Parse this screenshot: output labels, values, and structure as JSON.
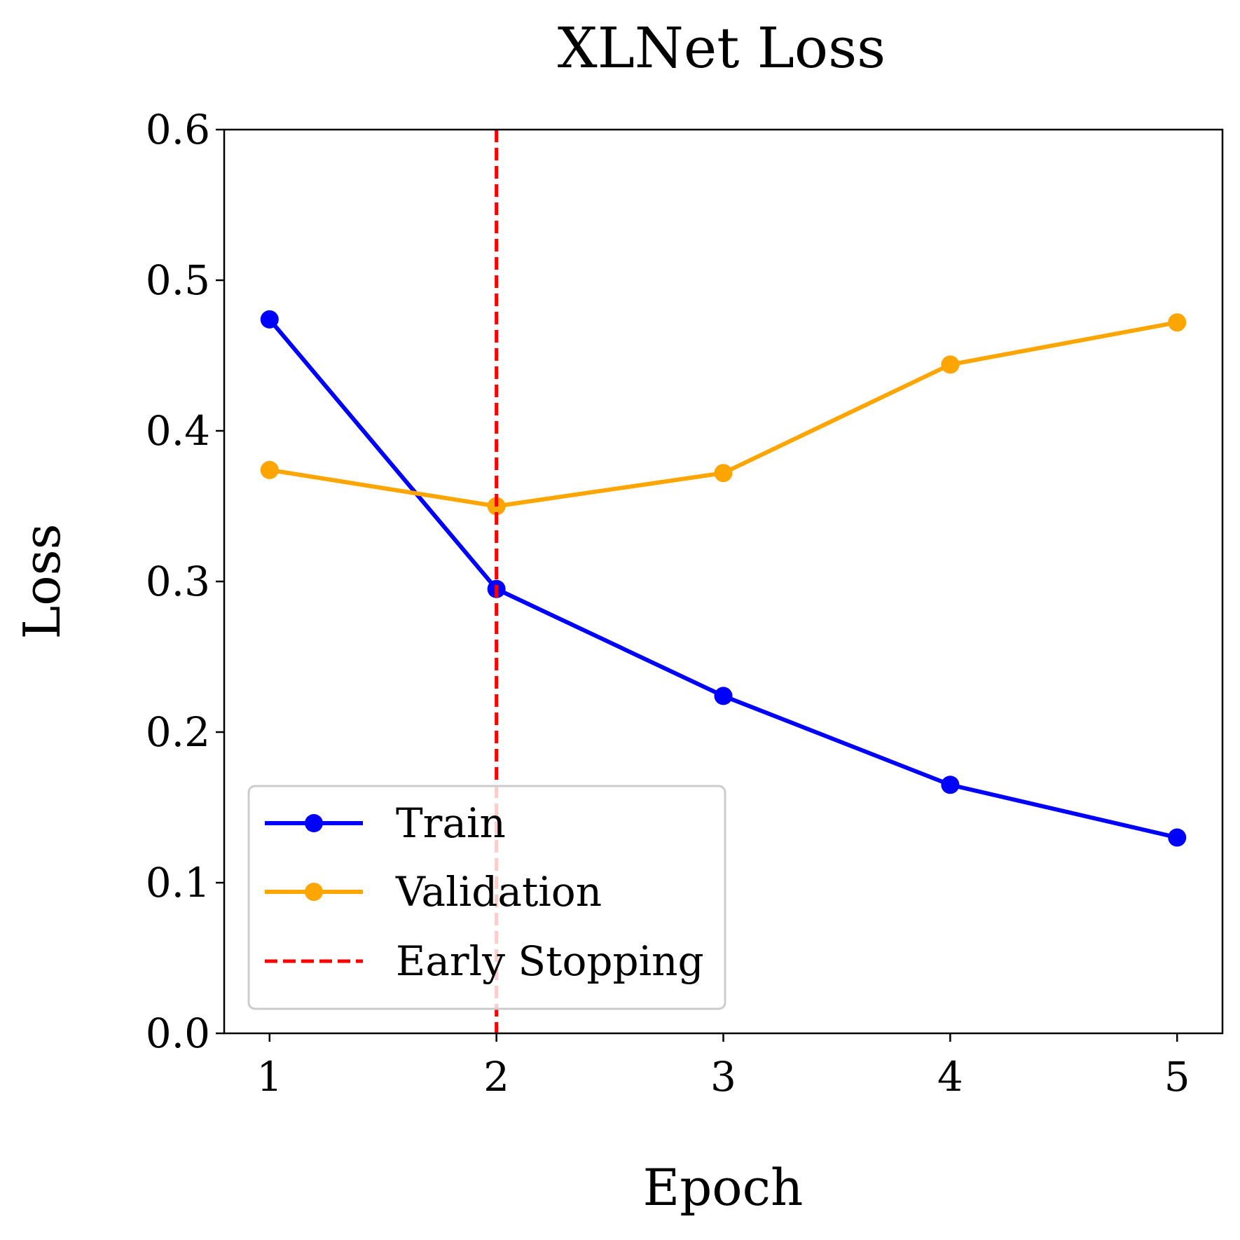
{
  "chart_data": {
    "type": "line",
    "title": "XLNet Loss",
    "xlabel": "Epoch",
    "ylabel": "Loss",
    "x": [
      1,
      2,
      3,
      4,
      5
    ],
    "xlim": [
      0.8,
      5.2
    ],
    "ylim": [
      0.0,
      0.6
    ],
    "x_ticks": [
      1,
      2,
      3,
      4,
      5
    ],
    "x_tick_labels": [
      "1",
      "2",
      "3",
      "4",
      "5"
    ],
    "y_ticks": [
      0.0,
      0.1,
      0.2,
      0.3,
      0.4,
      0.5,
      0.6
    ],
    "y_tick_labels": [
      "0.0",
      "0.1",
      "0.2",
      "0.3",
      "0.4",
      "0.5",
      "0.6"
    ],
    "grid": false,
    "legend_position": "lower-left",
    "series": [
      {
        "name": "Train",
        "color": "#0000ff",
        "marker": "circle",
        "values": [
          0.474,
          0.295,
          0.224,
          0.165,
          0.13
        ]
      },
      {
        "name": "Validation",
        "color": "#ffa500",
        "marker": "circle",
        "values": [
          0.374,
          0.35,
          0.372,
          0.444,
          0.472
        ]
      }
    ],
    "vlines": [
      {
        "name": "Early Stopping",
        "x": 2,
        "color": "#ff0000",
        "style": "dashed"
      }
    ]
  }
}
